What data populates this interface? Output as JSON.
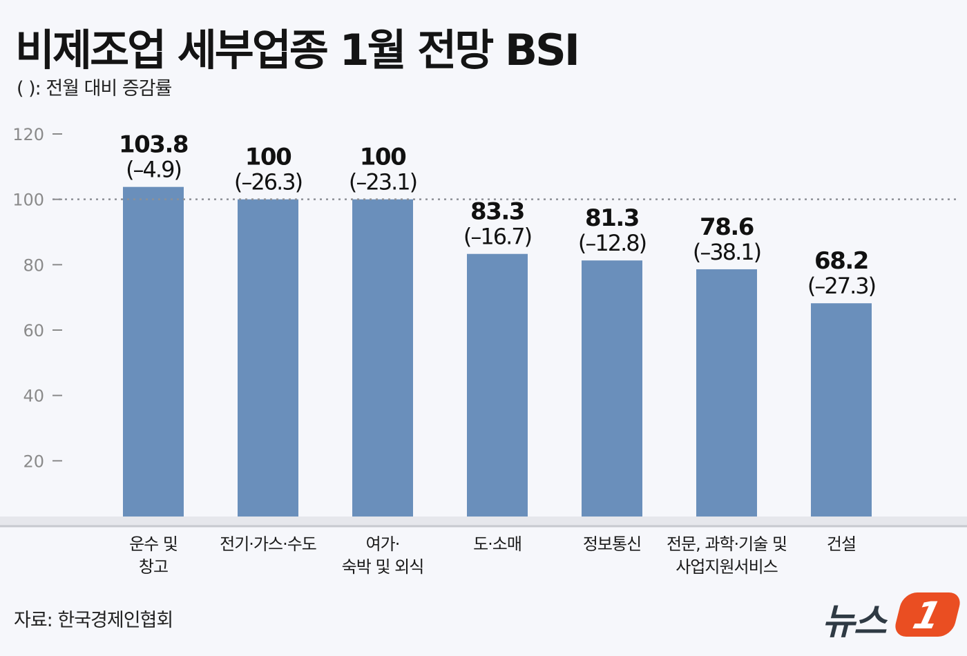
{
  "title": "비제조업 세부업종 1월 전망 BSI",
  "subtitle": "(   ): 전월 대비 증감률",
  "source": "자료: 한국경제인협회",
  "logo": {
    "text": "뉴스",
    "badge": "1"
  },
  "colors": {
    "bar": "#6a8fbb",
    "baseline": "#c7c9cf",
    "reference_line": "#8d9096",
    "tick": "#8a8a8a"
  },
  "chart_data": {
    "type": "bar",
    "categories": [
      [
        "운수 및",
        "창고"
      ],
      [
        "전기·가스·수도"
      ],
      [
        "여가·",
        "숙박 및 외식"
      ],
      [
        "도·소매"
      ],
      [
        "정보통신"
      ],
      [
        "전문, 과학·기술 및",
        "사업지원서비스"
      ],
      [
        "건설"
      ]
    ],
    "values": [
      103.8,
      100,
      100,
      83.3,
      81.3,
      78.6,
      68.2
    ],
    "value_labels": [
      "103.8",
      "100",
      "100",
      "83.3",
      "81.3",
      "78.6",
      "68.2"
    ],
    "change_labels": [
      "(–4.9)",
      "(–26.3)",
      "(–23.1)",
      "(–16.7)",
      "(–12.8)",
      "(–38.1)",
      "(–27.3)"
    ],
    "changes": [
      -4.9,
      -26.3,
      -23.1,
      -16.7,
      -12.8,
      -38.1,
      -27.3
    ],
    "yticks": [
      20,
      40,
      60,
      80,
      100,
      120
    ],
    "ylim": [
      0,
      120
    ],
    "reference_line": 100,
    "grid": false,
    "legend": "none"
  }
}
